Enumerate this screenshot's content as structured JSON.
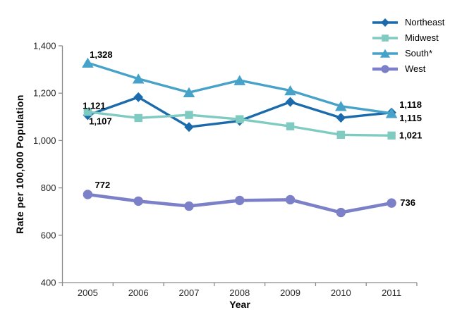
{
  "chart_data": {
    "type": "line",
    "title": "",
    "xlabel": "Year",
    "ylabel": "Rate per 100,000 Population",
    "categories": [
      "2005",
      "2006",
      "2007",
      "2008",
      "2009",
      "2010",
      "2011"
    ],
    "ylim": [
      400,
      1400
    ],
    "ytick_interval": 200,
    "ytick_labels": [
      "400",
      "600",
      "800",
      "1,000",
      "1,200",
      "1,400"
    ],
    "xtick_labels": [
      "2005",
      "2006",
      "2007",
      "2008",
      "2009",
      "2010",
      "2011"
    ],
    "grid": false,
    "legend_position": "top-right",
    "series": [
      {
        "name": "Northeast",
        "marker": "diamond",
        "color": "#1a6aac",
        "values": [
          1107,
          1183,
          1057,
          1083,
          1163,
          1096,
          1118
        ],
        "point_labels": [
          {
            "index": 0,
            "text": "1,107"
          },
          {
            "index": 6,
            "text": "1,118"
          }
        ]
      },
      {
        "name": "Midwest",
        "marker": "square",
        "color": "#7fcac1",
        "values": [
          1121,
          1095,
          1108,
          1090,
          1060,
          1024,
          1021
        ],
        "point_labels": [
          {
            "index": 0,
            "text": "1,121"
          },
          {
            "index": 6,
            "text": "1,021"
          }
        ]
      },
      {
        "name": "South*",
        "marker": "triangle",
        "color": "#46a2c9",
        "values": [
          1328,
          1261,
          1203,
          1254,
          1211,
          1145,
          1115
        ],
        "point_labels": [
          {
            "index": 0,
            "text": "1,328"
          },
          {
            "index": 6,
            "text": "1,115"
          }
        ]
      },
      {
        "name": "West",
        "marker": "circle",
        "color": "#7b80c8",
        "values": [
          772,
          744,
          723,
          747,
          750,
          696,
          736
        ],
        "point_labels": [
          {
            "index": 0,
            "text": "772"
          },
          {
            "index": 6,
            "text": "736"
          }
        ]
      }
    ]
  }
}
